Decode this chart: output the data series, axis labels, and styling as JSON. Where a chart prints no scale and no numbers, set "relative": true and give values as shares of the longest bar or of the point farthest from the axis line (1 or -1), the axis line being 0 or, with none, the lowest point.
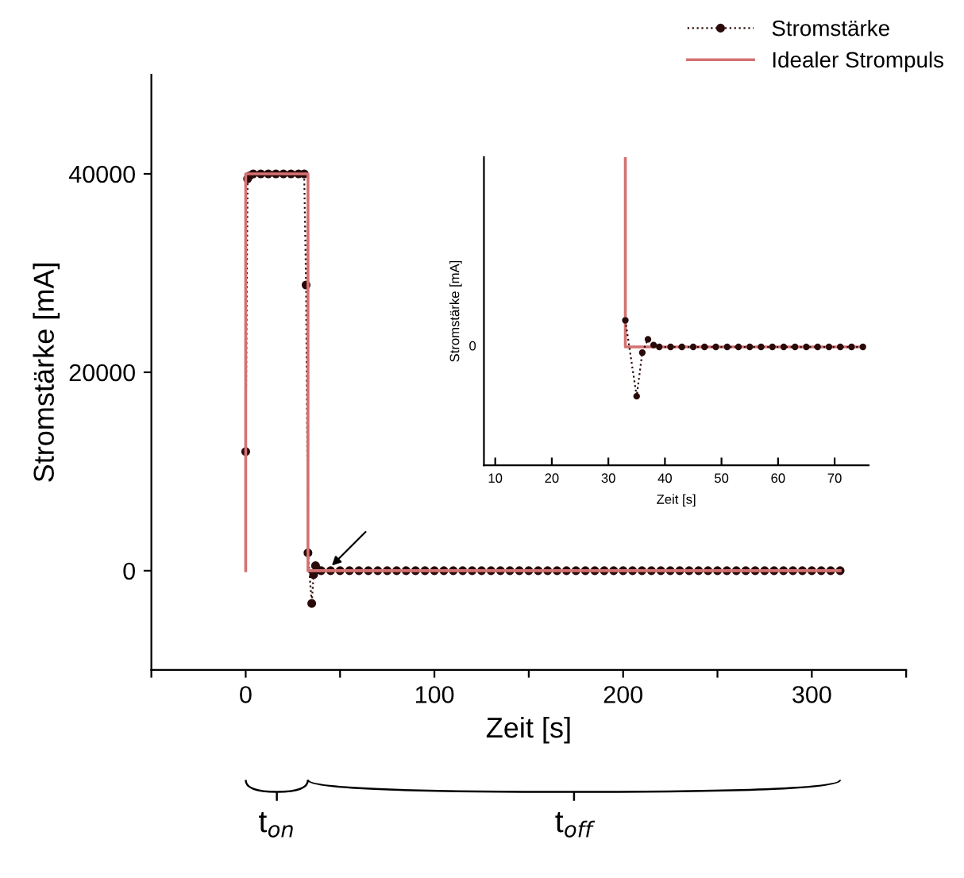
{
  "chart_data": [
    {
      "type": "line",
      "xlabel": "Zeit [s]",
      "ylabel": "Stromstärke [mA]",
      "xlim": [
        -50,
        350
      ],
      "ylim": [
        -10000,
        50000
      ],
      "xticks": [
        {
          "value": -50,
          "label": null
        },
        0,
        {
          "value": 50,
          "label": null
        },
        100,
        {
          "value": 150,
          "label": null
        },
        200,
        {
          "value": 250,
          "label": null
        },
        300,
        {
          "value": 350,
          "label": null
        }
      ],
      "yticks": [
        0,
        20000,
        40000
      ],
      "legend": "top right",
      "annotations": [
        "t$_{on}$",
        "t$_{off}$"
      ],
      "series": [
        {
          "name": "Stromstärke",
          "color": "#2a0a0a",
          "marker": "circle",
          "line_style": "dotted",
          "x": [
            0,
            1,
            2,
            4,
            8,
            12,
            16,
            20,
            24,
            28,
            31,
            32,
            33,
            35,
            36,
            37,
            38,
            40,
            45,
            50,
            55,
            60,
            65,
            70,
            75,
            80,
            85,
            90,
            95,
            100,
            105,
            110,
            115,
            120,
            125,
            130,
            135,
            140,
            145,
            150,
            155,
            160,
            165,
            170,
            175,
            180,
            185,
            190,
            195,
            200,
            205,
            210,
            215,
            220,
            225,
            230,
            235,
            240,
            245,
            250,
            255,
            260,
            265,
            270,
            275,
            280,
            285,
            290,
            295,
            300,
            305,
            310,
            315
          ],
          "values": [
            12000,
            39500,
            39800,
            40000,
            40000,
            40000,
            40000,
            40000,
            40000,
            40000,
            40000,
            28800,
            1800,
            -3300,
            -400,
            500,
            100,
            0,
            0,
            0,
            0,
            0,
            0,
            0,
            0,
            0,
            0,
            0,
            0,
            0,
            0,
            0,
            0,
            0,
            0,
            0,
            0,
            0,
            0,
            0,
            0,
            0,
            0,
            0,
            0,
            0,
            0,
            0,
            0,
            0,
            0,
            0,
            0,
            0,
            0,
            0,
            0,
            0,
            0,
            0,
            0,
            0,
            0,
            0,
            0,
            0,
            0,
            0,
            0,
            0,
            0,
            0,
            0
          ]
        },
        {
          "name": "Idealer Strompuls",
          "color": "#d47272",
          "marker": "none",
          "line_style": "solid",
          "x": [
            0,
            0,
            33,
            33,
            315
          ],
          "values": [
            0,
            40000,
            40000,
            0,
            0
          ]
        }
      ]
    },
    {
      "type": "line",
      "relative": true,
      "xlabel": "Zeit [s]",
      "ylabel": "Stromstärke [mA]",
      "xlim": [
        8,
        76
      ],
      "xticks": [
        10,
        20,
        30,
        40,
        50,
        60,
        70
      ],
      "tick_labels": "x",
      "annotations": [
        "0"
      ],
      "series": [
        {
          "color": "#d47272",
          "marker": "none",
          "line_style": "solid",
          "x": [
            33,
            33,
            75
          ],
          "values": [
            1,
            0,
            0
          ]
        },
        {
          "color": "#2a0a0a",
          "marker": "circle",
          "line_style": "dotted",
          "x": [
            33,
            35,
            36,
            37,
            38,
            39,
            41,
            43,
            45,
            47,
            49,
            51,
            53,
            55,
            57,
            59,
            61,
            63,
            65,
            67,
            69,
            71,
            73,
            75
          ],
          "values": [
            0.14,
            -0.26,
            -0.03,
            0.04,
            0.01,
            0,
            0,
            0,
            0,
            0,
            0,
            0,
            0,
            0,
            0,
            0,
            0,
            0,
            0,
            0,
            0,
            0,
            0,
            0
          ]
        }
      ]
    }
  ]
}
